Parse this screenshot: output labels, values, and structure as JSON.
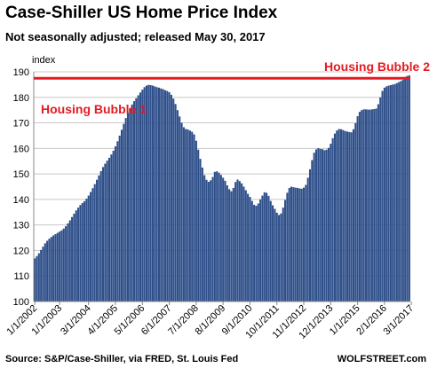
{
  "title": "Case-Shiller US Home Price Index",
  "subtitle": "Not seasonally adjusted; released May 30, 2017",
  "footer_source": "Source: S&P/Case-Shiller, via FRED,  St. Louis Fed",
  "footer_brand": "WOLFSTREET.com",
  "chart_data": {
    "type": "bar",
    "ylabel": "index",
    "ylim": [
      100,
      190
    ],
    "yticks": [
      100,
      110,
      120,
      130,
      140,
      150,
      160,
      170,
      180,
      190
    ],
    "x_tick_labels": [
      "1/1/2002",
      "1/1/2003",
      "3/1/2004",
      "4/1/2005",
      "5/1/2006",
      "6/1/2007",
      "7/1/2008",
      "8/1/2009",
      "9/1/2010",
      "10/1/2011",
      "11/1/2012",
      "12/1/2013",
      "1/1/2015",
      "2/1/2016",
      "3/1/2017"
    ],
    "grid": true,
    "bar_color": "#2e4f8a",
    "reference_line": {
      "value": 187.5,
      "color": "#e31b23"
    },
    "annotations": [
      {
        "text": "Housing Bubble 1",
        "color": "#e31b23"
      },
      {
        "text": "Housing Bubble 2",
        "color": "#e31b23"
      }
    ],
    "start": "2002-01",
    "values": [
      116.9,
      117.8,
      118.9,
      120.2,
      121.5,
      122.8,
      123.8,
      124.6,
      125.3,
      125.9,
      126.4,
      126.9,
      127.4,
      127.9,
      128.6,
      129.5,
      130.6,
      131.8,
      133.1,
      134.4,
      135.7,
      136.8,
      137.8,
      138.6,
      139.3,
      140.3,
      141.5,
      142.9,
      144.4,
      146.0,
      147.7,
      149.4,
      151.1,
      152.7,
      154.0,
      155.2,
      156.3,
      157.6,
      159.1,
      160.8,
      162.8,
      165.0,
      167.3,
      169.6,
      171.9,
      173.9,
      175.7,
      177.2,
      178.5,
      179.6,
      180.8,
      181.9,
      183.0,
      184.0,
      184.6,
      184.9,
      184.8,
      184.6,
      184.3,
      184.0,
      183.8,
      183.5,
      183.2,
      182.8,
      182.5,
      182.0,
      181.0,
      179.5,
      177.4,
      175.0,
      172.5,
      170.0,
      168.3,
      167.6,
      167.4,
      167.0,
      166.5,
      165.5,
      163.0,
      159.5,
      155.9,
      152.5,
      149.5,
      147.7,
      146.9,
      147.5,
      148.8,
      150.8,
      151.0,
      150.5,
      149.6,
      148.5,
      147.3,
      145.5,
      144.0,
      143.2,
      144.5,
      146.8,
      147.8,
      147.2,
      146.3,
      145.0,
      143.6,
      142.2,
      141.0,
      139.4,
      137.9,
      137.5,
      138.4,
      140.0,
      141.5,
      142.8,
      142.6,
      141.4,
      139.4,
      137.7,
      136.3,
      134.8,
      133.9,
      134.5,
      136.8,
      139.8,
      142.6,
      144.5,
      145.0,
      144.8,
      144.6,
      144.5,
      144.3,
      144.2,
      144.6,
      145.7,
      148.5,
      151.8,
      155.4,
      158.3,
      159.6,
      160.1,
      159.8,
      159.7,
      159.3,
      159.5,
      160.2,
      161.8,
      164.0,
      165.8,
      167.0,
      167.6,
      167.5,
      167.2,
      166.8,
      166.6,
      166.4,
      166.3,
      167.5,
      169.9,
      172.6,
      174.3,
      175.0,
      175.3,
      175.3,
      175.2,
      175.2,
      175.3,
      175.4,
      175.6,
      177.3,
      180.0,
      182.5,
      183.8,
      184.3,
      184.6,
      184.8,
      185.0,
      185.2,
      185.6,
      186.0,
      186.4,
      186.9,
      188.0,
      188.4,
      188.6
    ]
  }
}
